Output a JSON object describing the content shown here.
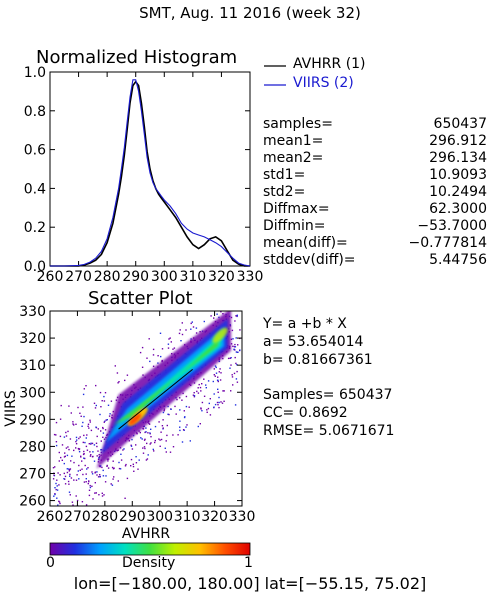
{
  "header": {
    "title": "SMT,  Aug. 11 2016 (week 32)"
  },
  "chart_data": [
    {
      "type": "line",
      "title": "Normalized Histogram",
      "xlim": [
        260,
        330
      ],
      "ylim": [
        0,
        1.0
      ],
      "x_ticks": [
        "260",
        "270",
        "280",
        "290",
        "300",
        "310",
        "320",
        "330"
      ],
      "y_ticks": [
        "0.0",
        "0.2",
        "0.4",
        "0.6",
        "0.8",
        "1.0"
      ],
      "x_tick_values": [
        260,
        270,
        280,
        290,
        300,
        310,
        320,
        330
      ],
      "y_tick_values": [
        0,
        0.2,
        0.4,
        0.6,
        0.8,
        1.0
      ],
      "legend_position": "outside-right",
      "series": [
        {
          "name": "AVHRR (1)",
          "color": "#000000",
          "x": [
            260,
            265,
            270,
            272,
            274,
            276,
            278,
            280,
            282,
            284,
            285,
            286,
            287,
            288,
            289,
            290,
            291,
            292,
            293,
            294,
            295,
            296,
            297,
            298,
            299,
            300,
            302,
            304,
            306,
            308,
            310,
            312,
            314,
            316,
            318,
            320,
            322,
            324,
            326,
            328,
            330
          ],
          "y": [
            0.0,
            0.0,
            0.0,
            0.005,
            0.015,
            0.03,
            0.06,
            0.12,
            0.22,
            0.37,
            0.46,
            0.57,
            0.7,
            0.84,
            0.93,
            0.95,
            0.93,
            0.84,
            0.72,
            0.59,
            0.5,
            0.44,
            0.4,
            0.37,
            0.35,
            0.33,
            0.29,
            0.25,
            0.2,
            0.15,
            0.11,
            0.09,
            0.11,
            0.14,
            0.15,
            0.13,
            0.08,
            0.03,
            0.01,
            0.0,
            0.0
          ]
        },
        {
          "name": "VIIRS (2)",
          "color": "#1a1ad0",
          "x": [
            260,
            265,
            270,
            272,
            274,
            276,
            278,
            280,
            282,
            284,
            285,
            286,
            287,
            288,
            289,
            290,
            291,
            292,
            293,
            294,
            295,
            296,
            297,
            298,
            299,
            300,
            302,
            304,
            306,
            308,
            310,
            312,
            314,
            316,
            318,
            320,
            322,
            324,
            326,
            328,
            330
          ],
          "y": [
            0.0,
            0.0,
            0.003,
            0.008,
            0.02,
            0.04,
            0.075,
            0.14,
            0.25,
            0.4,
            0.5,
            0.61,
            0.74,
            0.87,
            0.96,
            0.96,
            0.9,
            0.8,
            0.68,
            0.56,
            0.48,
            0.43,
            0.4,
            0.38,
            0.36,
            0.34,
            0.31,
            0.27,
            0.22,
            0.19,
            0.17,
            0.16,
            0.15,
            0.135,
            0.12,
            0.1,
            0.07,
            0.04,
            0.015,
            0.005,
            0.0
          ]
        }
      ]
    },
    {
      "type": "heatmap",
      "title": "Scatter Plot",
      "xlabel": "AVHRR",
      "ylabel": "VIIRS",
      "xlim": [
        260,
        330
      ],
      "ylim": [
        258,
        330
      ],
      "x_ticks": [
        "260",
        "270",
        "280",
        "290",
        "300",
        "310",
        "320",
        "330"
      ],
      "y_ticks": [
        "260",
        "270",
        "280",
        "290",
        "300",
        "310",
        "320",
        "330"
      ],
      "x_tick_values": [
        260,
        270,
        280,
        290,
        300,
        310,
        320,
        330
      ],
      "y_tick_values": [
        260,
        270,
        280,
        290,
        300,
        310,
        320,
        330
      ],
      "fit_line": {
        "a": 53.654014,
        "b": 0.81667361,
        "x_range": [
          285,
          312
        ],
        "color": "#000000"
      },
      "colorbar": {
        "label": "Density",
        "min_label": "0",
        "max_label": "1",
        "colors": [
          "#ffffff",
          "#7000a8",
          "#2030e0",
          "#00a0ff",
          "#00e0c0",
          "#40e040",
          "#c0f000",
          "#ffc000",
          "#ff5000",
          "#e00000"
        ]
      }
    }
  ],
  "stats": [
    {
      "label": "samples=",
      "value": "650437"
    },
    {
      "label": "mean1=",
      "value": "296.912"
    },
    {
      "label": "mean2=",
      "value": "296.134"
    },
    {
      "label": "std1=",
      "value": "10.9093"
    },
    {
      "label": "std2=",
      "value": "10.2494"
    },
    {
      "label": "Diffmax=",
      "value": "62.3000"
    },
    {
      "label": "Diffmin=",
      "value": "−53.7000"
    },
    {
      "label": "mean(diff)=",
      "value": "−0.777814"
    },
    {
      "label": "stddev(diff)=",
      "value": "5.44756"
    }
  ],
  "fit_info": {
    "equation": "Y= a +b * X",
    "a": "a= 53.654014",
    "b": "b= 0.81667361",
    "samples": "Samples= 650437",
    "cc": "CC=  0.8692",
    "rmse": "RMSE= 5.0671671"
  },
  "footer": {
    "bounds": "lon=[−180.00, 180.00] lat=[−55.15, 75.02]"
  }
}
